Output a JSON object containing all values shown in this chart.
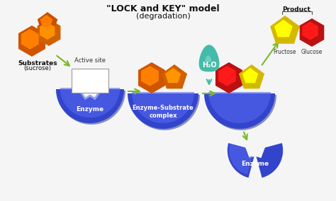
{
  "title_line1": "\"LOCK and KEY\" model",
  "title_line2": "(degradation)",
  "bg_color": "#f5f5f5",
  "enzyme_color_dark": "#2233aa",
  "enzyme_color_mid": "#3344cc",
  "enzyme_color_light": "#5566ee",
  "substrate_orange_dark": "#c85000",
  "substrate_orange": "#e86000",
  "substrate_orange_light": "#f08020",
  "substrate_red": "#cc1111",
  "substrate_yellow": "#f0d020",
  "water_color": "#44bbaa",
  "water_light": "#88ddcc",
  "arrow_green": "#77bb22",
  "arrow_teal": "#44aaaa",
  "label_enzyme": "Enzyme",
  "label_complex": "Enzyme-Substrate\ncomplex",
  "label_substrates": "Substrates",
  "label_sucrose": "(sucrose)",
  "label_active_site": "Active site",
  "label_water": "H₂O",
  "label_product": "Product",
  "label_fructose": "Fructose",
  "label_glucose": "Glucose",
  "title_fontsize": 9,
  "label_fontsize": 6.5
}
